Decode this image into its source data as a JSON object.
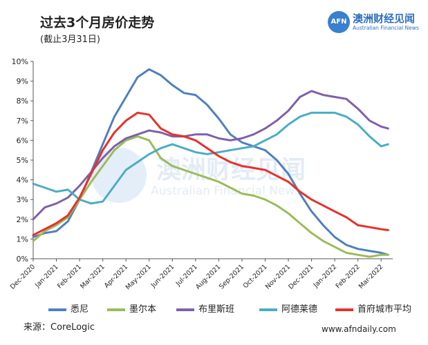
{
  "header": {
    "title": "过去3个月房价走势",
    "subtitle": "(截止3月31日)"
  },
  "logo": {
    "mark": "AFN",
    "name_cn": "澳洲财经见闻",
    "name_en": "Australian Financial News"
  },
  "watermark": {
    "cn": "澳洲财经见闻",
    "en": "Australian Financial News"
  },
  "footer": {
    "source": "来源：CoreLogic",
    "website": "www.afndaily.com"
  },
  "chart_data": {
    "type": "line",
    "title": "过去3个月房价走势",
    "subtitle": "(截止3月31日)",
    "ylabel": "",
    "xlabel": "",
    "ylim": [
      0,
      10
    ],
    "yticks": [
      "0%",
      "1%",
      "2%",
      "3%",
      "4%",
      "5%",
      "6%",
      "7%",
      "8%",
      "9%",
      "10%"
    ],
    "xticks": [
      "Dec-2020",
      "Jan-2021",
      "Feb-2021",
      "Mar-2021",
      "Apr-2021",
      "May-2021",
      "Jun-2021",
      "Jul-2021",
      "Aug-2021",
      "Sep-2021",
      "Oct-2021",
      "Nov-2021",
      "Dec-2021",
      "Jan-2022",
      "Feb-2022",
      "Mar-2022"
    ],
    "x": [
      0,
      0.5,
      1,
      1.5,
      2,
      2.5,
      3,
      3.5,
      4,
      4.5,
      5,
      5.5,
      6,
      6.5,
      7,
      7.5,
      8,
      8.5,
      9,
      9.5,
      10,
      10.5,
      11,
      11.5,
      12,
      12.5,
      13,
      13.5,
      14,
      14.5,
      15,
      15.3
    ],
    "legend_position": "bottom",
    "series": [
      {
        "name": "悉尼",
        "color": "#4f7fc0",
        "values": [
          1.1,
          1.3,
          1.4,
          1.9,
          3.0,
          4.4,
          5.8,
          7.2,
          8.2,
          9.2,
          9.6,
          9.3,
          8.8,
          8.4,
          8.3,
          7.8,
          7.1,
          6.3,
          5.9,
          5.7,
          5.5,
          5.0,
          4.3,
          3.3,
          2.4,
          1.7,
          1.1,
          0.7,
          0.5,
          0.4,
          0.3,
          0.2
        ]
      },
      {
        "name": "墨尔本",
        "color": "#9bbb59",
        "values": [
          0.9,
          1.4,
          1.7,
          2.1,
          3.0,
          3.9,
          4.7,
          5.5,
          6.0,
          6.2,
          6.0,
          5.1,
          4.7,
          4.5,
          4.3,
          4.1,
          3.9,
          3.6,
          3.3,
          3.2,
          3.0,
          2.7,
          2.3,
          1.8,
          1.3,
          0.9,
          0.6,
          0.3,
          0.2,
          0.1,
          0.2,
          0.2
        ]
      },
      {
        "name": "布里斯班",
        "color": "#7f60a8",
        "values": [
          2.0,
          2.6,
          2.8,
          3.1,
          3.7,
          4.4,
          5.1,
          5.7,
          6.1,
          6.3,
          6.5,
          6.4,
          6.2,
          6.2,
          6.3,
          6.3,
          6.1,
          6.0,
          6.1,
          6.3,
          6.6,
          7.0,
          7.5,
          8.2,
          8.5,
          8.3,
          8.2,
          8.1,
          7.6,
          7.0,
          6.7,
          6.6
        ]
      },
      {
        "name": "阿德莱德",
        "color": "#4bacc6",
        "values": [
          3.8,
          3.6,
          3.4,
          3.5,
          3.0,
          2.8,
          2.9,
          3.7,
          4.5,
          4.9,
          5.3,
          5.6,
          5.8,
          5.6,
          5.4,
          5.3,
          5.4,
          5.5,
          5.6,
          5.7,
          6.0,
          6.3,
          6.8,
          7.2,
          7.4,
          7.4,
          7.4,
          7.2,
          6.8,
          6.2,
          5.7,
          5.8
        ]
      },
      {
        "name": "首府城市平均",
        "color": "#e8302a",
        "values": [
          1.2,
          1.5,
          1.8,
          2.2,
          3.1,
          4.3,
          5.5,
          6.4,
          7.0,
          7.4,
          7.3,
          6.6,
          6.3,
          6.2,
          6.0,
          5.6,
          5.2,
          4.9,
          4.7,
          4.6,
          4.5,
          4.2,
          3.9,
          3.4,
          3.0,
          2.7,
          2.4,
          2.1,
          1.7,
          1.6,
          1.5,
          1.45
        ]
      }
    ]
  }
}
